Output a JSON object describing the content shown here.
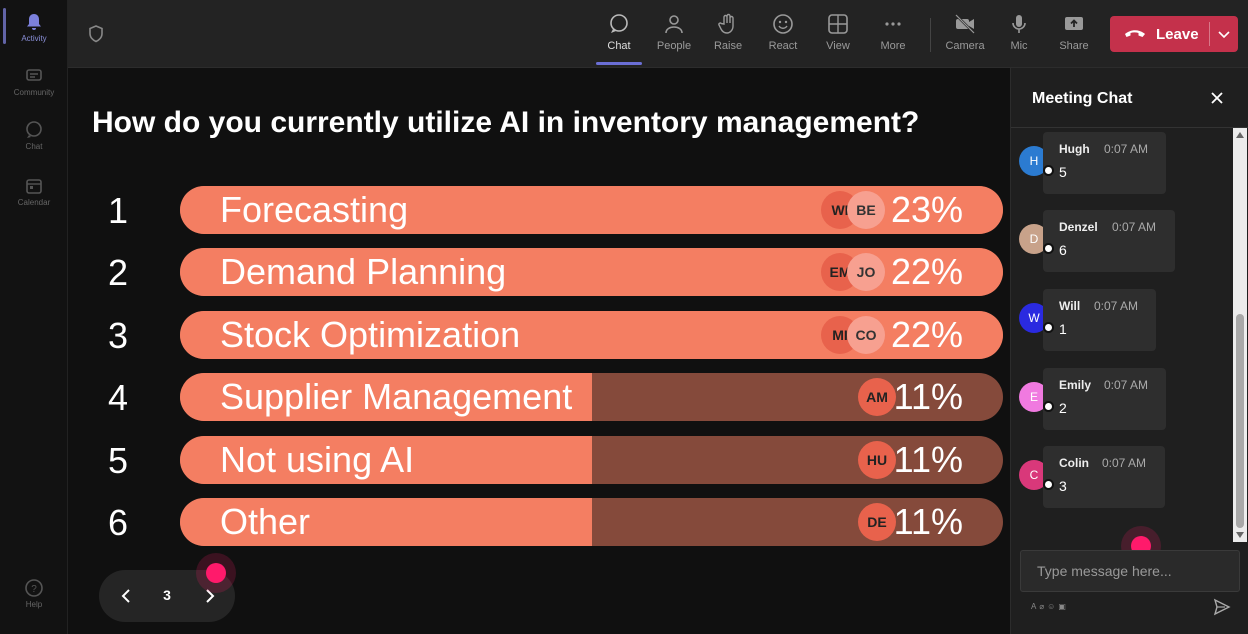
{
  "rail": {
    "items": [
      {
        "label": "Activity",
        "icon": "bell-icon"
      },
      {
        "label": "Community",
        "icon": "community-icon"
      },
      {
        "label": "Chat",
        "icon": "chat-icon"
      },
      {
        "label": "Calendar",
        "icon": "calendar-icon"
      },
      {
        "label": "Help",
        "icon": "help-icon"
      }
    ]
  },
  "toolbar": {
    "chat": "Chat",
    "people": "People",
    "raise": "Raise",
    "react": "React",
    "view": "View",
    "more": "More",
    "camera": "Camera",
    "mic": "Mic",
    "share": "Share",
    "leave": "Leave"
  },
  "poll": {
    "question": "How do you currently utilize AI in inventory management?",
    "options": [
      {
        "num": "1",
        "label": "Forecasting",
        "pct": "23%",
        "fill": 1.0,
        "avatars": [
          "WI",
          "BE"
        ]
      },
      {
        "num": "2",
        "label": "Demand Planning",
        "pct": "22%",
        "fill": 1.0,
        "avatars": [
          "EM",
          "JO"
        ]
      },
      {
        "num": "3",
        "label": "Stock Optimization",
        "pct": "22%",
        "fill": 1.0,
        "avatars": [
          "MI",
          "CO"
        ]
      },
      {
        "num": "4",
        "label": "Supplier Management",
        "pct": "11%",
        "fill": 0.5,
        "avatars": [
          "AM"
        ]
      },
      {
        "num": "5",
        "label": "Not using AI",
        "pct": "11%",
        "fill": 0.5,
        "avatars": [
          "HU"
        ]
      },
      {
        "num": "6",
        "label": "Other",
        "pct": "11%",
        "fill": 0.5,
        "avatars": [
          "DE"
        ]
      }
    ],
    "bar_color": "#f47e62",
    "bar_track_color": "#854a3b"
  },
  "pager": {
    "page": "3"
  },
  "chat": {
    "title": "Meeting Chat",
    "input_placeholder": "Type message here...",
    "messages": [
      {
        "initial": "H",
        "name": "Hugh",
        "time": "0:07 AM",
        "text": "5",
        "color": "#2b7bd1"
      },
      {
        "initial": "D",
        "name": "Denzel",
        "time": "0:07 AM",
        "text": "6",
        "color": "#c8a28a"
      },
      {
        "initial": "W",
        "name": "Will",
        "time": "0:07 AM",
        "text": "1",
        "color": "#2a2ae0"
      },
      {
        "initial": "E",
        "name": "Emily",
        "time": "0:07 AM",
        "text": "2",
        "color": "#f07ae0"
      },
      {
        "initial": "C",
        "name": "Colin",
        "time": "0:07 AM",
        "text": "3",
        "color": "#d9387a"
      }
    ]
  },
  "colors": {
    "leave": "#c4314b",
    "accent": "#6b6fd6",
    "cursor": "#ff1a6b"
  }
}
